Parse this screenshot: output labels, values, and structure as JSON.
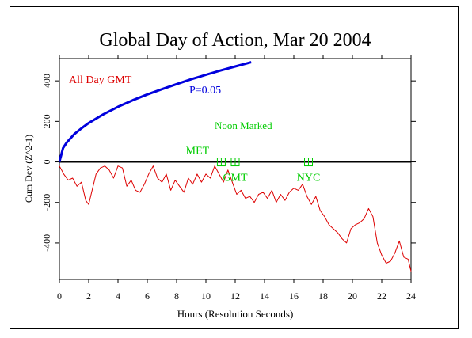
{
  "chart_data": {
    "type": "line",
    "title": "Global Day of Action, Mar 20 2004",
    "xlabel": "Hours (Resolution Seconds)",
    "ylabel": "Cum Dev (Z^2-1)",
    "xlim": [
      0,
      24
    ],
    "ylim": [
      -580,
      510
    ],
    "xticks": [
      0,
      2,
      4,
      6,
      8,
      10,
      12,
      14,
      16,
      18,
      20,
      22,
      24
    ],
    "yticks": [
      -400,
      -200,
      0,
      200,
      400
    ],
    "grid": false,
    "series": [
      {
        "name": "All Day GMT",
        "color": "#dd0000",
        "x": [
          0,
          0.3,
          0.6,
          0.9,
          1.2,
          1.5,
          1.8,
          2.0,
          2.2,
          2.5,
          2.8,
          3.1,
          3.4,
          3.7,
          4.0,
          4.3,
          4.6,
          4.9,
          5.2,
          5.5,
          5.8,
          6.1,
          6.4,
          6.7,
          7.0,
          7.3,
          7.6,
          7.9,
          8.2,
          8.5,
          8.8,
          9.1,
          9.4,
          9.7,
          10.0,
          10.3,
          10.6,
          10.9,
          11.2,
          11.5,
          11.8,
          12.1,
          12.4,
          12.7,
          13.0,
          13.3,
          13.6,
          13.9,
          14.2,
          14.5,
          14.8,
          15.1,
          15.4,
          15.7,
          16.0,
          16.3,
          16.6,
          16.9,
          17.2,
          17.5,
          17.8,
          18.1,
          18.4,
          18.7,
          19.0,
          19.3,
          19.6,
          19.9,
          20.2,
          20.5,
          20.8,
          21.1,
          21.4,
          21.7,
          22.0,
          22.3,
          22.6,
          22.9,
          23.2,
          23.5,
          23.8,
          24.0
        ],
        "y": [
          -20,
          -60,
          -90,
          -80,
          -120,
          -100,
          -190,
          -210,
          -150,
          -60,
          -30,
          -20,
          -40,
          -80,
          -20,
          -30,
          -120,
          -90,
          -140,
          -150,
          -110,
          -60,
          -20,
          -80,
          -100,
          -60,
          -140,
          -90,
          -120,
          -150,
          -80,
          -110,
          -60,
          -100,
          -60,
          -80,
          -20,
          -60,
          -100,
          -40,
          -100,
          -160,
          -140,
          -180,
          -170,
          -200,
          -160,
          -150,
          -180,
          -140,
          -200,
          -160,
          -190,
          -150,
          -130,
          -140,
          -110,
          -170,
          -210,
          -170,
          -240,
          -270,
          -310,
          -330,
          -350,
          -380,
          -400,
          -330,
          -310,
          -300,
          -280,
          -230,
          -270,
          -400,
          -460,
          -500,
          -490,
          -450,
          -390,
          -470,
          -480,
          -540
        ]
      },
      {
        "name": "P=0.05",
        "color": "#0000dd",
        "x": [
          0,
          0.25,
          0.5,
          1,
          1.5,
          2,
          3,
          4,
          5,
          6,
          7,
          8,
          9,
          10,
          11,
          12,
          13.1
        ],
        "y": [
          0,
          68,
          96,
          136,
          166,
          192,
          235,
          272,
          304,
          333,
          359,
          384,
          408,
          430,
          451,
          471,
          492
        ]
      }
    ],
    "markers": [
      {
        "label": "MET",
        "x": 11.05
      },
      {
        "label": "GMT",
        "x": 12.0
      },
      {
        "label": "NYC",
        "x": 17.0
      }
    ],
    "annotations": {
      "series_label": "All Day GMT",
      "p_label": "P=0.05",
      "noon_label": "Noon Marked"
    }
  }
}
